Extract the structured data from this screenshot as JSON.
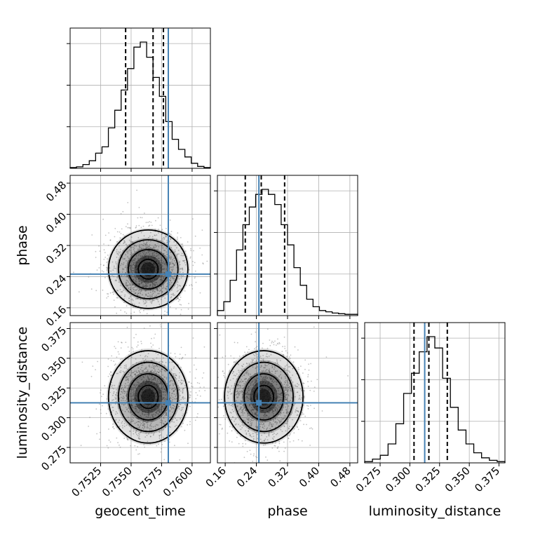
{
  "chart_data": {
    "type": "corner",
    "parameters": [
      "geocent_time",
      "phase",
      "luminosity_distance"
    ],
    "ranges": {
      "geocent_time": [
        0.75,
        0.7615
      ],
      "phase": [
        0.14,
        0.5
      ],
      "luminosity_distance": [
        0.262,
        0.38
      ]
    },
    "ticks": {
      "geocent_time": [
        "0.7525",
        "0.7550",
        "0.7575",
        "0.7600"
      ],
      "phase": [
        "0.16",
        "0.24",
        "0.32",
        "0.40",
        "0.48"
      ],
      "luminosity_distance": [
        "0.275",
        "0.300",
        "0.325",
        "0.350",
        "0.375"
      ]
    },
    "truths": {
      "geocent_time": 0.75805,
      "phase": 0.2465,
      "luminosity_distance": 0.3125
    },
    "quantiles": {
      "geocent_time": [
        0.75455,
        0.7568,
        0.75765
      ],
      "phase": [
        0.2115,
        0.2525,
        0.3125
      ],
      "luminosity_distance": [
        0.3035,
        0.316,
        0.3315
      ]
    },
    "histograms": {
      "geocent_time": [
        0.006,
        0.012,
        0.03,
        0.06,
        0.12,
        0.17,
        0.32,
        0.46,
        0.62,
        0.79,
        0.96,
        1.0,
        0.88,
        0.72,
        0.57,
        0.37,
        0.23,
        0.15,
        0.09,
        0.04,
        0.015,
        0.006
      ],
      "phase": [
        0.04,
        0.11,
        0.28,
        0.52,
        0.72,
        0.86,
        0.96,
        1.0,
        0.96,
        0.88,
        0.72,
        0.56,
        0.38,
        0.24,
        0.13,
        0.07,
        0.04,
        0.03,
        0.02,
        0.015,
        0.01,
        0.01
      ],
      "luminosity_distance": [
        0.01,
        0.03,
        0.06,
        0.15,
        0.31,
        0.55,
        0.71,
        0.88,
        1.0,
        0.91,
        0.67,
        0.44,
        0.26,
        0.15,
        0.08,
        0.04,
        0.02,
        0.01
      ]
    },
    "mean": {
      "geocent_time": 0.7564,
      "phase": 0.259,
      "luminosity_distance": 0.3175
    },
    "std": {
      "geocent_time": 0.00155,
      "phase": 0.048,
      "luminosity_distance": 0.0185
    },
    "truth_color": "#4682b4",
    "grid": true
  }
}
